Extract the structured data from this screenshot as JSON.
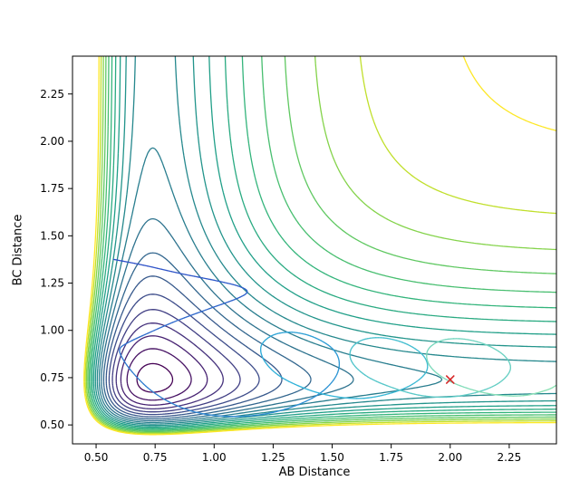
{
  "chart_data": {
    "type": "contour",
    "title": "",
    "xlabel": "AB Distance",
    "ylabel": "BC Distance",
    "x_range": [
      0.4,
      2.45
    ],
    "y_range": [
      0.4,
      2.45
    ],
    "grid": false,
    "legend": "none",
    "xticks": {
      "values": [
        0.5,
        0.75,
        1.0,
        1.25,
        1.5,
        1.75,
        2.0,
        2.25
      ],
      "labels": [
        "0.50",
        "0.75",
        "1.00",
        "1.25",
        "1.50",
        "1.75",
        "2.00",
        "2.25"
      ]
    },
    "yticks": {
      "values": [
        0.5,
        0.75,
        1.0,
        1.25,
        1.5,
        1.75,
        2.0,
        2.25
      ],
      "labels": [
        "0.50",
        "0.75",
        "1.00",
        "1.25",
        "1.50",
        "1.75",
        "2.00",
        "2.25"
      ]
    },
    "potential_surface": {
      "model": "sum-of-morse",
      "formula": "V(x,y) = (1-exp(-a(x-r0)))^2 + (1-exp(-a(y-r0)))^2",
      "a": 3.0,
      "r0": 0.74
    },
    "contour_levels": [
      0.05,
      0.15,
      0.25,
      0.35,
      0.45,
      0.55,
      0.65,
      0.75,
      0.85,
      0.95,
      1.05,
      1.15,
      1.25,
      1.35,
      1.45,
      1.55,
      1.65,
      1.75,
      1.85,
      1.95
    ],
    "colormap": {
      "name": "viridis",
      "stops": [
        [
          0.0,
          "#440154"
        ],
        [
          0.125,
          "#482878"
        ],
        [
          0.25,
          "#3e4989"
        ],
        [
          0.375,
          "#31688e"
        ],
        [
          0.5,
          "#26828e"
        ],
        [
          0.625,
          "#1f9e89"
        ],
        [
          0.75,
          "#35b779"
        ],
        [
          0.875,
          "#6ece58"
        ],
        [
          0.9375,
          "#b5de2b"
        ],
        [
          1.0,
          "#fde725"
        ]
      ]
    },
    "trajectory": {
      "color_stops": [
        "#3050c8",
        "#2fb3d9",
        "#8fe3b4"
      ],
      "line_width": 1.3,
      "points": [
        [
          0.575,
          1.375
        ],
        [
          0.7,
          1.345
        ],
        [
          0.86,
          1.3
        ],
        [
          1.0,
          1.265
        ],
        [
          1.1,
          1.235
        ],
        [
          1.14,
          1.205
        ],
        [
          1.1,
          1.17
        ],
        [
          0.98,
          1.115
        ],
        [
          0.84,
          1.05
        ],
        [
          0.72,
          0.985
        ],
        [
          0.635,
          0.935
        ],
        [
          0.6,
          0.9
        ],
        [
          0.615,
          0.845
        ],
        [
          0.66,
          0.77
        ],
        [
          0.73,
          0.685
        ],
        [
          0.82,
          0.615
        ],
        [
          0.93,
          0.565
        ],
        [
          1.06,
          0.545
        ],
        [
          1.2,
          0.555
        ],
        [
          1.33,
          0.595
        ],
        [
          1.44,
          0.66
        ],
        [
          1.51,
          0.745
        ],
        [
          1.53,
          0.83
        ],
        [
          1.5,
          0.905
        ],
        [
          1.42,
          0.965
        ],
        [
          1.33,
          0.99
        ],
        [
          1.25,
          0.975
        ],
        [
          1.2,
          0.92
        ],
        [
          1.21,
          0.845
        ],
        [
          1.27,
          0.765
        ],
        [
          1.37,
          0.7
        ],
        [
          1.49,
          0.655
        ],
        [
          1.62,
          0.64
        ],
        [
          1.74,
          0.665
        ],
        [
          1.84,
          0.715
        ],
        [
          1.9,
          0.785
        ],
        [
          1.89,
          0.86
        ],
        [
          1.82,
          0.925
        ],
        [
          1.72,
          0.96
        ],
        [
          1.63,
          0.95
        ],
        [
          1.58,
          0.9
        ],
        [
          1.585,
          0.83
        ],
        [
          1.65,
          0.755
        ],
        [
          1.76,
          0.695
        ],
        [
          1.88,
          0.655
        ],
        [
          2.0,
          0.648
        ],
        [
          2.12,
          0.675
        ],
        [
          2.21,
          0.725
        ],
        [
          2.255,
          0.795
        ],
        [
          2.23,
          0.865
        ],
        [
          2.15,
          0.925
        ],
        [
          2.05,
          0.955
        ],
        [
          1.96,
          0.945
        ],
        [
          1.905,
          0.895
        ],
        [
          1.91,
          0.82
        ],
        [
          1.97,
          0.75
        ],
        [
          2.07,
          0.695
        ],
        [
          2.19,
          0.66
        ],
        [
          2.31,
          0.655
        ],
        [
          2.41,
          0.685
        ],
        [
          2.45,
          0.71
        ]
      ]
    },
    "marker": {
      "x": 2.0,
      "y": 0.74,
      "symbol": "x",
      "color": "#d62728"
    },
    "axes_style": {
      "spine_color": "#000000",
      "tick_color": "#000000",
      "tick_length": 5,
      "background": "#ffffff"
    }
  }
}
